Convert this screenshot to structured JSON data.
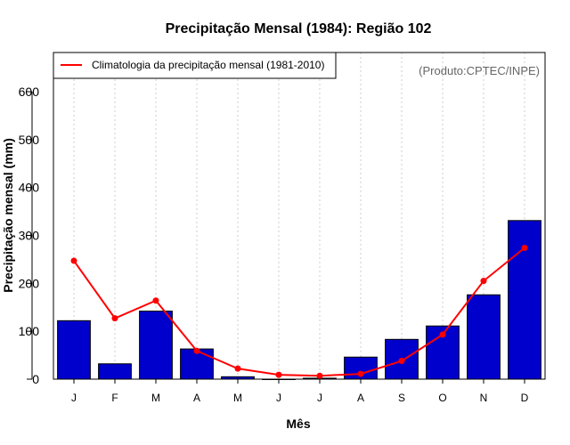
{
  "chart_data": {
    "type": "bar",
    "title": "Precipitação Mensal (1984): Região 102",
    "xlabel": "Mês",
    "ylabel": "Precipitação mensal (mm)",
    "ylim": [
      0,
      600
    ],
    "yticks": [
      "0",
      "100",
      "200",
      "300",
      "400",
      "500",
      "600"
    ],
    "grid": "vertical-dotted",
    "categories": [
      "J",
      "F",
      "M",
      "A",
      "M",
      "J",
      "J",
      "A",
      "S",
      "O",
      "N",
      "D"
    ],
    "series": [
      {
        "name": "Precipitação mensal 1984",
        "kind": "bar",
        "values": [
          122,
          32,
          142,
          63,
          5,
          0,
          2,
          46,
          83,
          111,
          176,
          331
        ]
      },
      {
        "name": "Climatologia da precipitação mensal (1981-2010)",
        "kind": "line",
        "values": [
          247,
          127,
          164,
          59,
          22,
          9,
          7,
          11,
          38,
          93,
          205,
          274
        ]
      }
    ],
    "legend": {
      "label": "Climatologia da precipitação mensal (1981-2010)",
      "position": "top-left"
    },
    "credit": "(Produto:CPTEC/INPE)",
    "colors": {
      "bar_fill": "#0000CC",
      "bar_stroke": "#000000",
      "line": "#FF0000",
      "grid": "#CCCCCC"
    }
  }
}
